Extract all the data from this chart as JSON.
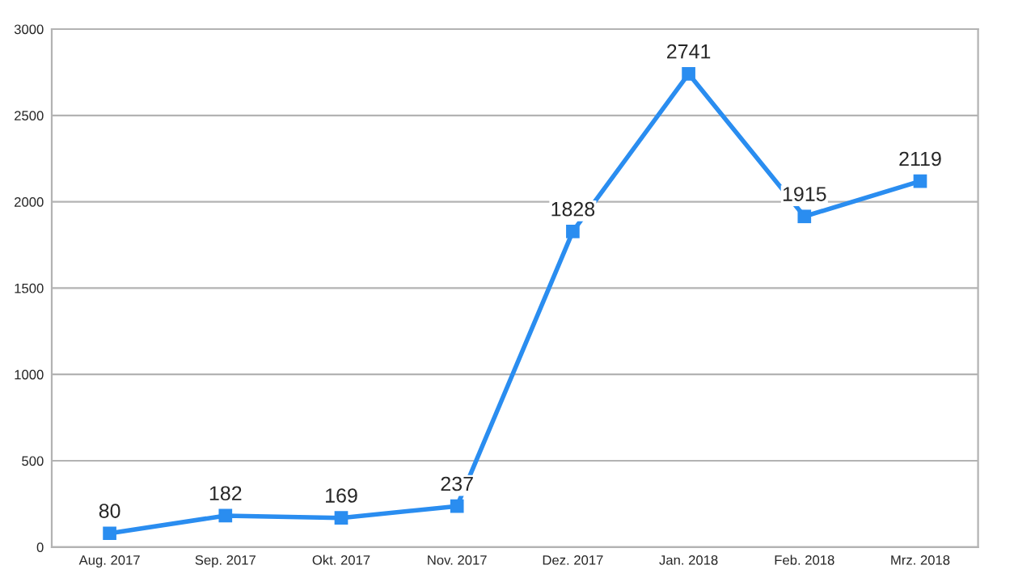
{
  "chart_data": {
    "type": "line",
    "categories": [
      "Aug. 2017",
      "Sep. 2017",
      "Okt. 2017",
      "Nov. 2017",
      "Dez. 2017",
      "Jan. 2018",
      "Feb. 2018",
      "Mrz. 2018"
    ],
    "series": [
      {
        "color": "#2a8df0",
        "values": [
          80,
          182,
          169,
          237,
          1828,
          2741,
          1915,
          2119
        ]
      }
    ],
    "ylim": [
      0,
      3000
    ],
    "yticks": [
      0,
      500,
      1000,
      1500,
      2000,
      2500,
      3000
    ],
    "grid": "y",
    "marker": "square",
    "line_style": "solid",
    "data_labels": true
  }
}
